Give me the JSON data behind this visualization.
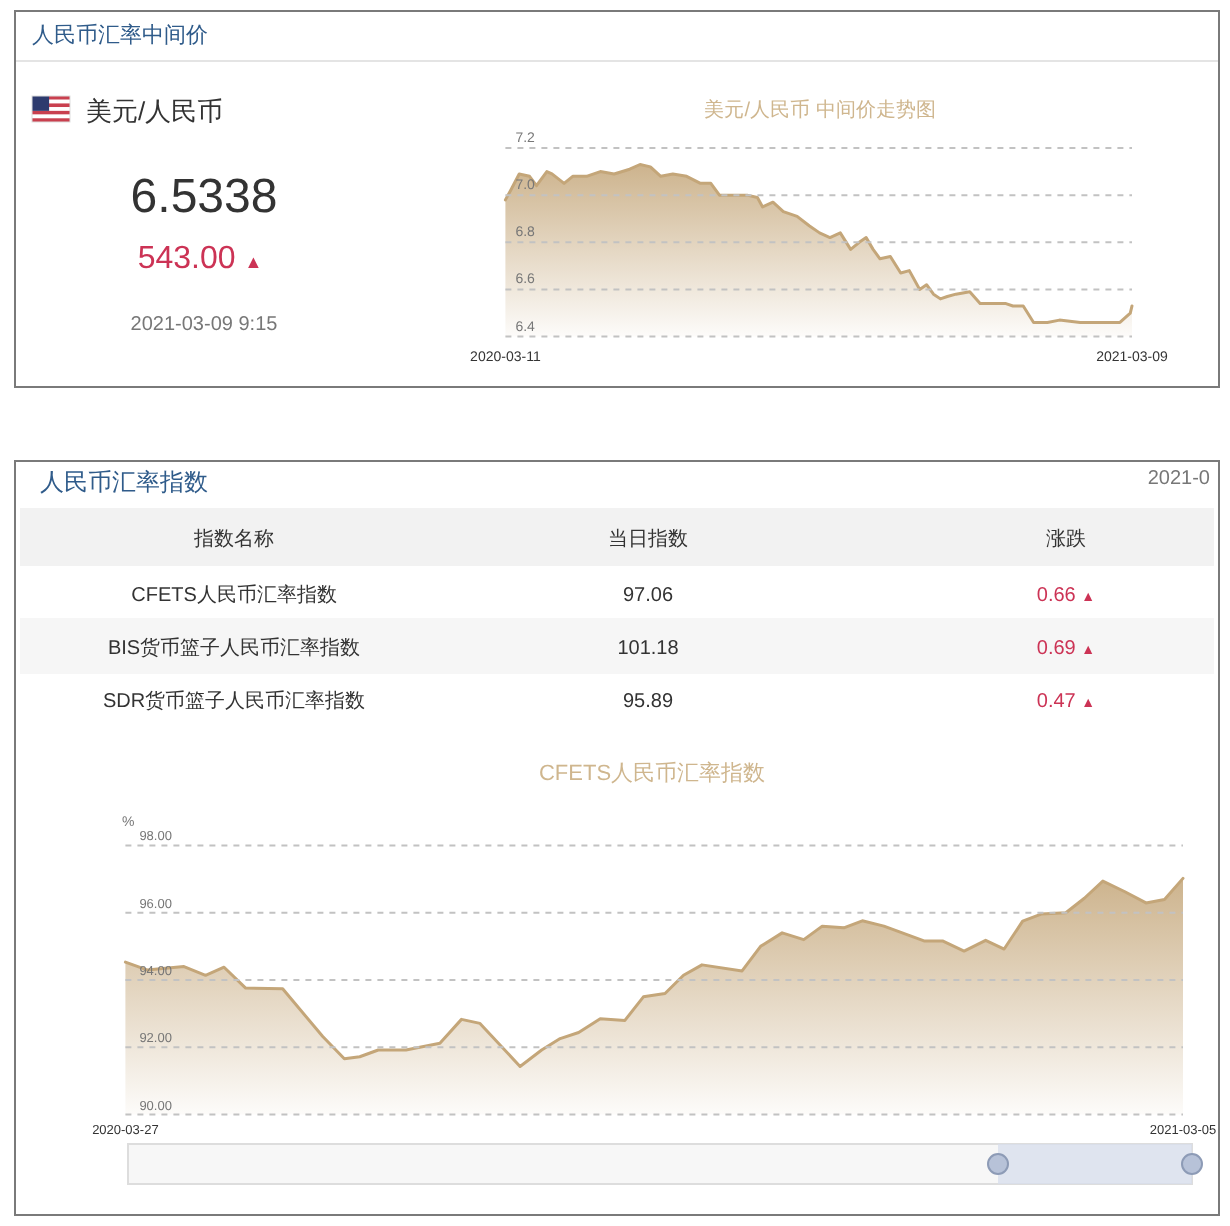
{
  "chart_data": [
    {
      "type": "other",
      "title": "人民币汇率中间价",
      "subtitle": "美元/人民币",
      "annotations": [
        "6.5338",
        "543.00 ▲",
        "2021-03-09 9:15"
      ]
    },
    {
      "type": "area",
      "title": "美元/人民币 中间价走势图",
      "x": [
        "2020-03-11",
        "2020-03-14",
        "2020-03-19",
        "2020-03-25",
        "2020-03-29",
        "2020-04-04",
        "2020-04-07",
        "2020-04-14",
        "2020-04-19",
        "2020-04-27",
        "2020-05-05",
        "2020-05-13",
        "2020-05-22",
        "2020-05-28",
        "2020-06-03",
        "2020-06-09",
        "2020-06-16",
        "2020-06-24",
        "2020-07-02",
        "2020-07-08",
        "2020-07-13",
        "2020-07-21",
        "2020-07-29",
        "2020-08-04",
        "2020-08-07",
        "2020-08-13",
        "2020-08-19",
        "2020-08-27",
        "2020-09-03",
        "2020-09-09",
        "2020-09-15",
        "2020-09-21",
        "2020-09-27",
        "2020-10-02",
        "2020-10-06",
        "2020-10-10",
        "2020-10-14",
        "2020-10-20",
        "2020-10-26",
        "2020-10-31",
        "2020-11-06",
        "2020-11-10",
        "2020-11-14",
        "2020-11-18",
        "2020-11-22",
        "2020-11-27",
        "2020-12-05",
        "2020-12-11",
        "2020-12-19",
        "2020-12-26",
        "2020-12-30",
        "2021-01-05",
        "2021-01-11",
        "2021-01-19",
        "2021-01-26",
        "2021-02-07",
        "2021-02-18",
        "2021-03-02",
        "2021-03-08",
        "2021-03-09"
      ],
      "series": [
        {
          "color": "#c4a679",
          "values": [
            6.98,
            7.02,
            7.09,
            7.08,
            7.04,
            7.1,
            7.09,
            7.05,
            7.08,
            7.08,
            7.1,
            7.09,
            7.11,
            7.13,
            7.12,
            7.08,
            7.09,
            7.08,
            7.05,
            7.05,
            7.0,
            7.0,
            7.0,
            6.99,
            6.95,
            6.97,
            6.93,
            6.91,
            6.87,
            6.84,
            6.82,
            6.84,
            6.77,
            6.8,
            6.82,
            6.77,
            6.73,
            6.74,
            6.67,
            6.68,
            6.6,
            6.62,
            6.58,
            6.56,
            6.57,
            6.58,
            6.59,
            6.54,
            6.54,
            6.54,
            6.53,
            6.53,
            6.46,
            6.46,
            6.47,
            6.46,
            6.46,
            6.46,
            6.5,
            6.53
          ]
        }
      ],
      "xlim": [
        "2020-03-11",
        "2021-03-09"
      ],
      "xticks": [
        "2020-03-11",
        "2021-03-09"
      ],
      "ylim": [
        6.4,
        7.2
      ],
      "yticks": [
        7.2,
        {
          "value": 7,
          "label": "7.0"
        },
        6.8,
        6.6,
        6.4
      ],
      "grid": "y"
    },
    {
      "type": "other",
      "title": "人民币汇率指数",
      "annotations": [
        "2021-0",
        "指数名称",
        "当日指数",
        "涨跌",
        "CFETS人民币汇率指数",
        "97.06",
        "0.66 ▲",
        "BIS货币篮子人民币汇率指数",
        "101.18",
        "0.69 ▲",
        "SDR货币篮子人民币汇率指数",
        "95.89",
        "0.47 ▲"
      ]
    },
    {
      "type": "area",
      "title": "CFETS人民币汇率指数",
      "ylabel": "%",
      "x": [
        "2020-03-27",
        "2020-04-03",
        "2020-04-15",
        "2020-04-22",
        "2020-04-28",
        "2020-05-05",
        "2020-05-17",
        "2020-05-30",
        "2020-06-06",
        "2020-06-11",
        "2020-06-17",
        "2020-06-26",
        "2020-07-07",
        "2020-07-14",
        "2020-07-20",
        "2020-08-02",
        "2020-08-09",
        "2020-08-15",
        "2020-08-21",
        "2020-08-28",
        "2020-09-05",
        "2020-09-11",
        "2020-09-18",
        "2020-09-24",
        "2020-09-30",
        "2020-10-13",
        "2020-10-19",
        "2020-10-26",
        "2020-11-02",
        "2020-11-08",
        "2020-11-15",
        "2020-11-21",
        "2020-11-28",
        "2020-12-11",
        "2020-12-17",
        "2020-12-24",
        "2020-12-31",
        "2021-01-06",
        "2021-01-12",
        "2021-01-18",
        "2021-01-26",
        "2021-02-01",
        "2021-02-07",
        "2021-02-14",
        "2021-02-21",
        "2021-02-27",
        "2021-03-05"
      ],
      "series": [
        {
          "color": "#c4a679",
          "values": [
            94.53,
            94.3,
            94.4,
            94.14,
            94.38,
            93.76,
            93.74,
            92.32,
            91.66,
            91.72,
            91.92,
            91.92,
            92.12,
            92.83,
            92.71,
            91.43,
            91.92,
            92.26,
            92.44,
            92.85,
            92.8,
            93.5,
            93.6,
            94.14,
            94.45,
            94.27,
            95.0,
            95.4,
            95.2,
            95.6,
            95.55,
            95.76,
            95.6,
            95.16,
            95.16,
            94.86,
            95.18,
            94.92,
            95.75,
            95.96,
            96.0,
            96.43,
            96.94,
            96.63,
            96.29,
            96.39,
            97.02
          ]
        }
      ],
      "xlim": [
        "2020-03-27",
        "2021-03-05"
      ],
      "xticks": [
        "2020-03-27",
        "2021-03-05"
      ],
      "ylim": [
        90,
        98
      ],
      "yticks": [
        {
          "value": 98,
          "label": "98.00"
        },
        {
          "value": 96,
          "label": "96.00"
        },
        {
          "value": 94,
          "label": "94.00"
        },
        {
          "value": 92,
          "label": "92.00"
        },
        {
          "value": 90,
          "label": "90.00"
        }
      ],
      "grid": "y"
    }
  ]
}
